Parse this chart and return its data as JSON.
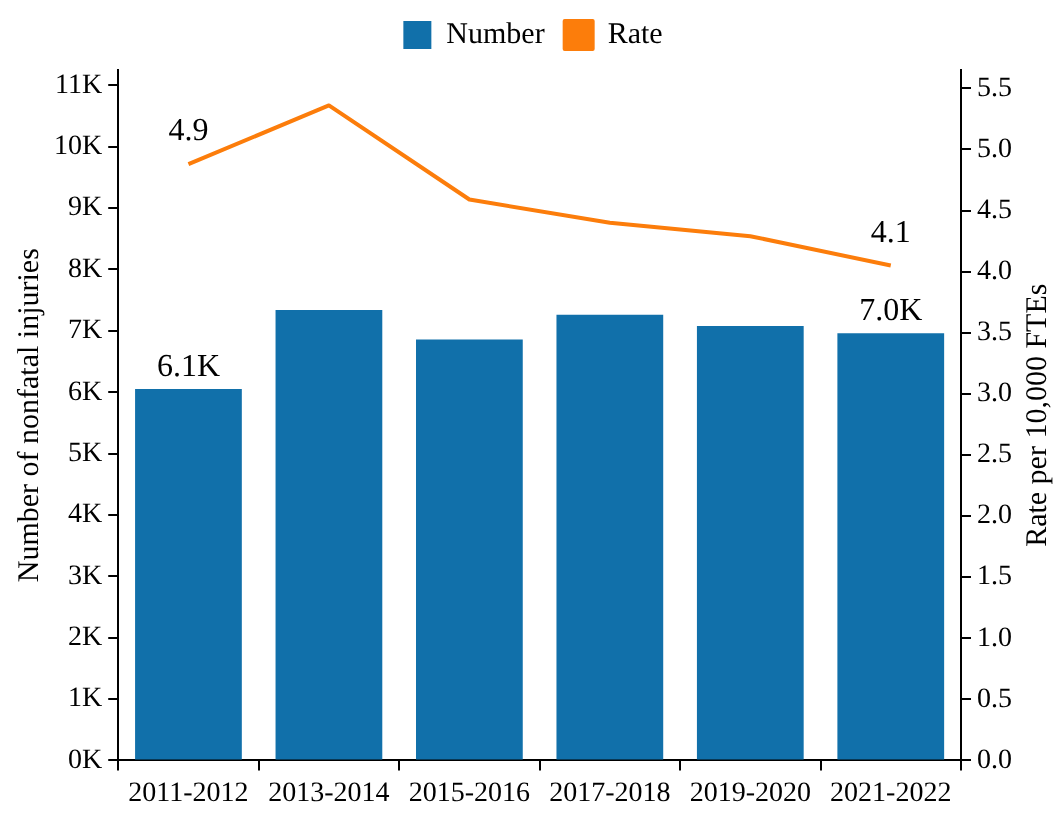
{
  "chart_data": {
    "type": "bar",
    "ylabel": "Number of nonfatal injuries",
    "y2label": "Rate per 10,000 FTEs",
    "categories": [
      "2011-2012",
      "2013-2014",
      "2015-2016",
      "2017-2018",
      "2019-2020",
      "2021-2022"
    ],
    "series": [
      {
        "name": "Number",
        "color": "#1170aa",
        "values": [
          6050,
          7340,
          6860,
          7260,
          7080,
          6960
        ],
        "value_labels": [
          "6.1K",
          null,
          null,
          null,
          null,
          "7.0K"
        ]
      },
      {
        "name": "Rate",
        "type": "line",
        "axis": "y2",
        "color": "#fc7d0b",
        "values": [
          4.88,
          5.36,
          4.59,
          4.4,
          4.29,
          4.05
        ],
        "value_labels": [
          "4.9",
          null,
          null,
          null,
          null,
          "4.1"
        ]
      }
    ],
    "ylim": [
      0,
      11250
    ],
    "yticks": [
      {
        "value": 0,
        "label": "0K"
      },
      {
        "value": 1000,
        "label": "1K"
      },
      {
        "value": 2000,
        "label": "2K"
      },
      {
        "value": 3000,
        "label": "3K"
      },
      {
        "value": 4000,
        "label": "4K"
      },
      {
        "value": 5000,
        "label": "5K"
      },
      {
        "value": 6000,
        "label": "6K"
      },
      {
        "value": 7000,
        "label": "7K"
      },
      {
        "value": 8000,
        "label": "8K"
      },
      {
        "value": 9000,
        "label": "9K"
      },
      {
        "value": 10000,
        "label": "10K"
      },
      {
        "value": 11000,
        "label": "11K"
      }
    ],
    "y2lim": [
      0,
      5.65
    ],
    "y2ticks": [
      {
        "value": 0,
        "label": "0.0"
      },
      {
        "value": 0.5,
        "label": "0.5"
      },
      {
        "value": 1,
        "label": "1.0"
      },
      {
        "value": 1.5,
        "label": "1.5"
      },
      {
        "value": 2,
        "label": "2.0"
      },
      {
        "value": 2.5,
        "label": "2.5"
      },
      {
        "value": 3,
        "label": "3.0"
      },
      {
        "value": 3.5,
        "label": "3.5"
      },
      {
        "value": 4,
        "label": "4.0"
      },
      {
        "value": 4.5,
        "label": "4.5"
      },
      {
        "value": 5,
        "label": "5.0"
      },
      {
        "value": 5.5,
        "label": "5.5"
      }
    ],
    "grid": false,
    "legend": "top",
    "marker": "none",
    "line_style": "solid"
  }
}
